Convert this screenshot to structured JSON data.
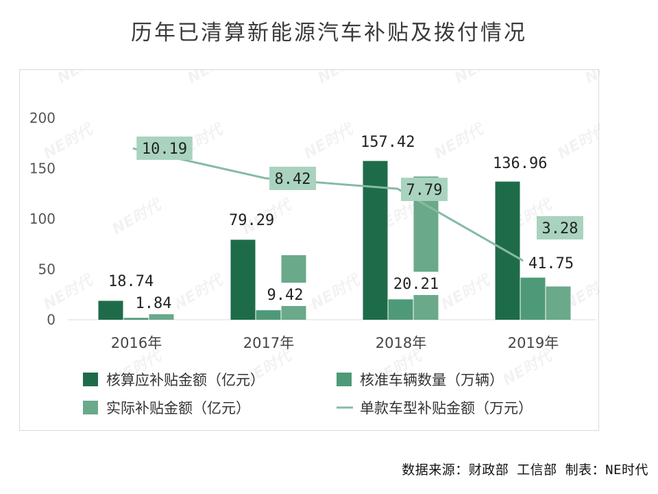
{
  "title": "历年已清算新能源汽车补贴及拨付情况",
  "source": "数据来源：财政部 工信部 制表：NE时代",
  "watermark": "NE时代",
  "colors": {
    "dark_green": "#1e6b4a",
    "mid_green": "#4e9a78",
    "light_green": "#6aa98a",
    "line": "#85bba3",
    "label_box": "#a9d3bf",
    "label_box_white": "#ffffff"
  },
  "chart_data": {
    "type": "bar",
    "categories": [
      "2016年",
      "2017年",
      "2018年",
      "2019年"
    ],
    "left_axis": {
      "ylim": [
        0,
        200
      ],
      "ticks": [
        0,
        50,
        100,
        150,
        200
      ]
    },
    "right_axis": {
      "ylim": [
        0,
        12
      ],
      "ticks": [
        0,
        2,
        4,
        6,
        8,
        10,
        12
      ]
    },
    "series": [
      {
        "name": "核算应补贴金额（亿元）",
        "type": "bar",
        "axis": "left",
        "color": "#1e6b4a",
        "values": [
          18.74,
          79.29,
          157.42,
          136.96
        ],
        "labels": [
          "18.74",
          "79.29",
          "157.42",
          "136.96"
        ]
      },
      {
        "name": "核准车辆数量（万辆）",
        "type": "bar",
        "axis": "left",
        "color": "#4e9a78",
        "values": [
          1.84,
          9.42,
          20.21,
          41.75
        ],
        "labels": [
          "1.84",
          "9.42",
          "20.21",
          "41.75"
        ]
      },
      {
        "name": "实际补贴金额（亿元）",
        "type": "bar",
        "axis": "left",
        "color": "#6aa98a",
        "values": [
          11,
          64,
          142,
          33
        ]
      },
      {
        "name": "单款车型补贴金额（万元）",
        "type": "line",
        "axis": "right",
        "color": "#85bba3",
        "values": [
          10.19,
          8.42,
          7.79,
          3.28
        ],
        "labels": [
          "10.19",
          "8.42",
          "7.79",
          "3.28"
        ]
      }
    ],
    "legend_position": "bottom",
    "grid": false
  }
}
